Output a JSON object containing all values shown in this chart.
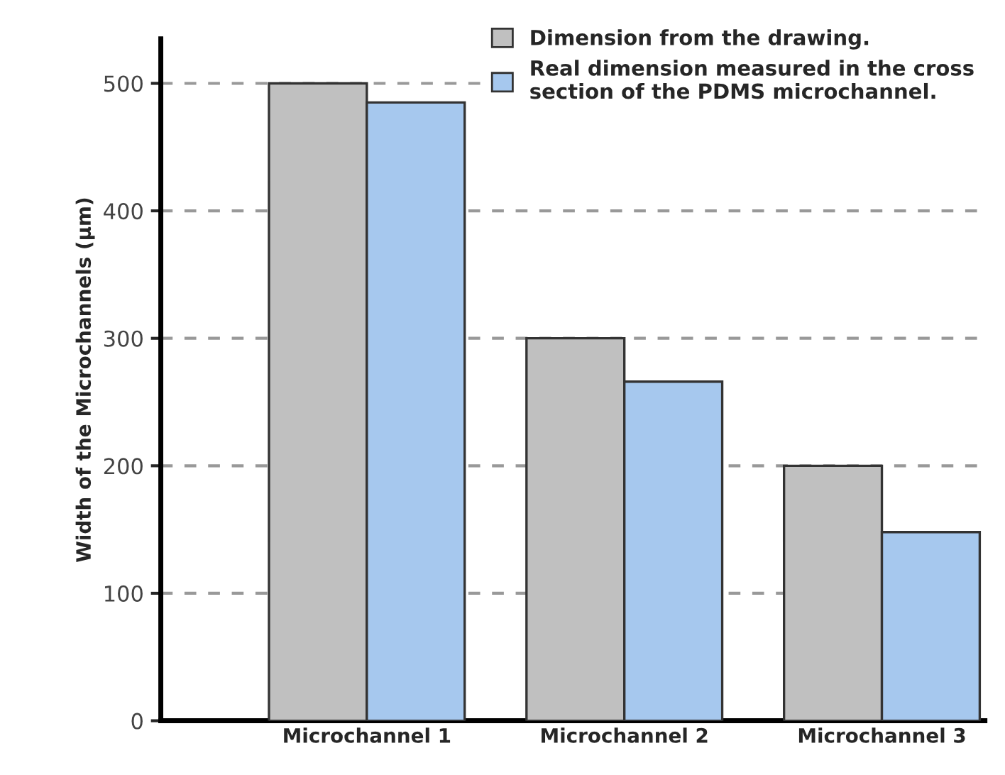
{
  "chart_data": {
    "type": "bar",
    "ylabel": "Width of the Microchannels (μm)",
    "categories": [
      "Microchannel 1",
      "Microchannel 2",
      "Microchannel 3"
    ],
    "series": [
      {
        "name": "Dimension from the drawing.",
        "color": "#c0c0c0",
        "values": [
          500,
          300,
          200
        ]
      },
      {
        "name": "Real dimension measured in the cross\nsection of the PDMS microchannel.",
        "color": "#a6c8ee",
        "values": [
          485,
          266,
          148
        ]
      }
    ],
    "ylim": [
      0,
      535
    ],
    "yticks": [
      0,
      100,
      200,
      300,
      400,
      500
    ],
    "grid": "y",
    "legend": "top right"
  }
}
